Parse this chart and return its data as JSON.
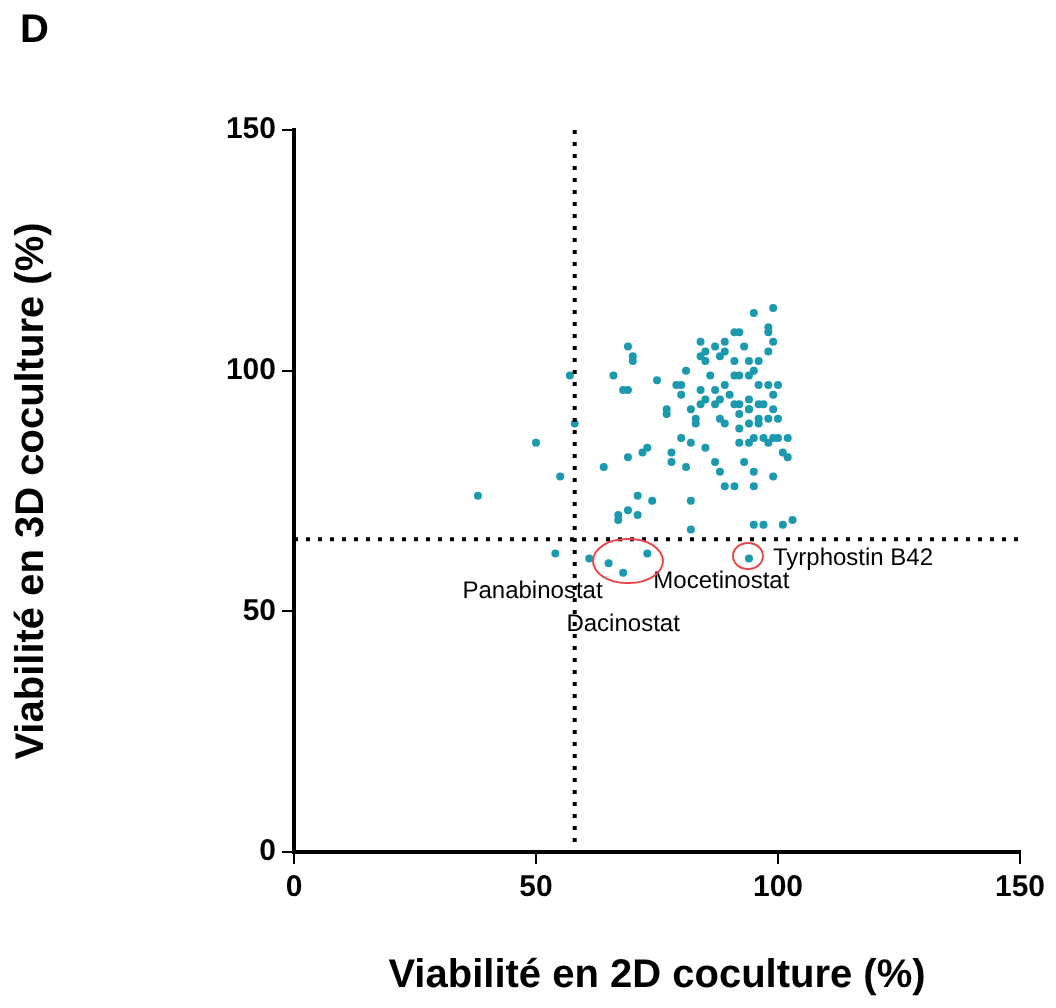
{
  "chart_data": {
    "type": "scatter",
    "xlabel": "Viabilité en 2D coculture (%)",
    "ylabel": "Viabilité en 3D coculture (%)",
    "xlim": [
      0,
      150
    ],
    "xticks": [
      0,
      50,
      100,
      150
    ],
    "ylim": [
      0,
      150
    ],
    "yticks": [
      0,
      50,
      100,
      150
    ],
    "grid": false,
    "legend": false,
    "marker": "circle",
    "ref_lines": [
      {
        "axis": "x",
        "value": 58,
        "line_style": "dotted",
        "color": "#000000"
      },
      {
        "axis": "y",
        "value": 65,
        "line_style": "dotted",
        "color": "#000000"
      }
    ],
    "annotations": [
      "D",
      {
        "text": "Panabinostat",
        "x": 65,
        "y": 60
      },
      {
        "text": "Dacinostat",
        "x": 68,
        "y": 58
      },
      {
        "text": "Mocetinostat",
        "x": 73,
        "y": 62
      },
      {
        "text": "Tyrphostin B42",
        "x": 94,
        "y": 61
      }
    ],
    "series": [
      {
        "color": "#1b9aaf",
        "x": [
          38,
          50,
          55,
          57,
          58,
          54,
          61,
          65,
          68,
          73,
          94,
          64,
          69,
          67,
          69,
          71,
          67,
          71,
          74,
          82,
          82,
          95,
          95,
          97,
          101,
          103,
          69,
          70,
          70,
          66,
          68,
          69,
          75,
          73,
          72,
          77,
          77,
          80,
          78,
          78,
          81,
          81,
          79,
          80,
          82,
          83,
          83,
          84,
          85,
          84,
          85,
          86,
          87,
          88,
          89,
          89,
          91,
          92,
          93,
          91,
          91,
          95,
          99,
          98,
          98,
          99,
          98,
          94,
          95,
          96,
          94,
          92,
          87,
          88,
          89,
          90,
          92,
          94,
          96,
          98,
          100,
          99,
          97,
          94,
          96,
          98,
          100,
          99,
          96,
          94,
          92,
          95,
          97,
          99,
          100,
          102,
          101,
          98,
          94,
          92,
          89,
          88,
          87,
          85,
          84,
          84,
          80,
          82,
          85,
          87,
          88,
          89,
          91,
          93,
          95,
          99,
          102,
          94,
          92,
          91,
          96
        ],
        "values": [
          74,
          85,
          78,
          99,
          89,
          62,
          61,
          60,
          58,
          62,
          61,
          80,
          82,
          70,
          71,
          70,
          69,
          74,
          73,
          73,
          67,
          76,
          68,
          68,
          68,
          69,
          105,
          103,
          102,
          99,
          96,
          96,
          98,
          84,
          83,
          92,
          91,
          86,
          83,
          81,
          80,
          100,
          97,
          97,
          92,
          90,
          89,
          106,
          104,
          103,
          102,
          99,
          105,
          103,
          106,
          104,
          108,
          108,
          105,
          102,
          99,
          112,
          113,
          109,
          108,
          106,
          104,
          102,
          100,
          102,
          99,
          99,
          96,
          94,
          97,
          95,
          93,
          94,
          97,
          97,
          97,
          95,
          93,
          92,
          90,
          90,
          90,
          92,
          89,
          89,
          88,
          86,
          86,
          86,
          86,
          86,
          83,
          85,
          85,
          85,
          89,
          90,
          93,
          94,
          93,
          96,
          95,
          85,
          84,
          81,
          79,
          76,
          76,
          81,
          79,
          78,
          82,
          92,
          91,
          93,
          93
        ]
      }
    ]
  }
}
